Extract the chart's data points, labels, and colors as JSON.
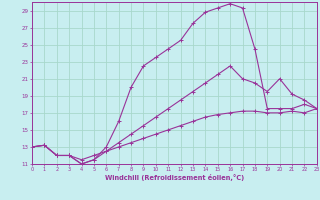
{
  "background_color": "#c8eef0",
  "grid_color": "#a8d8cc",
  "line_color": "#993399",
  "xlim": [
    0,
    23
  ],
  "ylim": [
    11,
    30
  ],
  "xticks": [
    0,
    1,
    2,
    3,
    4,
    5,
    6,
    7,
    8,
    9,
    10,
    11,
    12,
    13,
    14,
    15,
    16,
    17,
    18,
    19,
    20,
    21,
    22,
    23
  ],
  "yticks": [
    11,
    13,
    15,
    17,
    19,
    21,
    23,
    25,
    27,
    29
  ],
  "xlabel": "Windchill (Refroidissement éolien,°C)",
  "line1_x": [
    0,
    1,
    2,
    3,
    4,
    5,
    6,
    7,
    8,
    9,
    10,
    11,
    12,
    13,
    14,
    15,
    16,
    17,
    18,
    19,
    20,
    21,
    22,
    23
  ],
  "line1_y": [
    13.0,
    13.2,
    12.0,
    12.0,
    11.0,
    11.5,
    13.0,
    16.0,
    20.0,
    22.5,
    23.5,
    24.5,
    25.5,
    27.5,
    28.8,
    29.3,
    29.8,
    29.3,
    24.5,
    17.5,
    17.5,
    17.5,
    18.0,
    17.5
  ],
  "line2_x": [
    0,
    1,
    2,
    3,
    4,
    5,
    6,
    7,
    8,
    9,
    10,
    11,
    12,
    13,
    14,
    15,
    16,
    17,
    18,
    19,
    20,
    21,
    22,
    23
  ],
  "line2_y": [
    13.0,
    13.2,
    12.0,
    12.0,
    11.0,
    11.5,
    12.5,
    13.5,
    14.5,
    15.5,
    16.5,
    17.5,
    18.5,
    19.5,
    20.5,
    21.5,
    22.5,
    21.0,
    20.5,
    19.5,
    21.0,
    19.2,
    18.5,
    17.5
  ],
  "line3_x": [
    0,
    1,
    2,
    3,
    4,
    5,
    6,
    7,
    8,
    9,
    10,
    11,
    12,
    13,
    14,
    15,
    16,
    17,
    18,
    19,
    20,
    21,
    22,
    23
  ],
  "line3_y": [
    13.0,
    13.2,
    12.0,
    12.0,
    11.5,
    12.0,
    12.5,
    13.0,
    13.5,
    14.0,
    14.5,
    15.0,
    15.5,
    16.0,
    16.5,
    16.8,
    17.0,
    17.2,
    17.2,
    17.0,
    17.0,
    17.2,
    17.0,
    17.5
  ]
}
